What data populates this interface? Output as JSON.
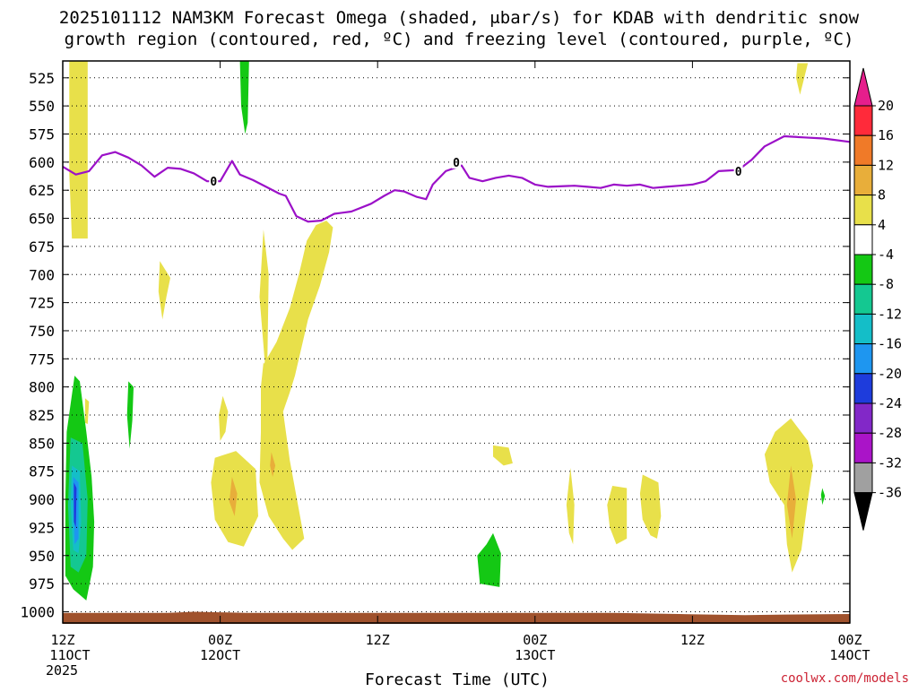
{
  "chart_data": {
    "type": "heatmap",
    "title": "2025101112 NAM3KM Forecast Omega (shaded, μbar/s) for KDAB with dendritic snow",
    "subtitle": "growth region (contoured, red, ºC) and freezing level (contoured, purple, ºC)",
    "xlabel": "Forecast Time (UTC)",
    "ylabel": "",
    "credit": "coolwx.com/models",
    "x_axis": {
      "range_hours": [
        0,
        60
      ],
      "ticks": [
        {
          "hour": 0,
          "line1": "12Z",
          "line2": "11OCT",
          "line3": "2025"
        },
        {
          "hour": 12,
          "line1": "00Z",
          "line2": "12OCT",
          "line3": ""
        },
        {
          "hour": 24,
          "line1": "12Z",
          "line2": "",
          "line3": ""
        },
        {
          "hour": 36,
          "line1": "00Z",
          "line2": "13OCT",
          "line3": ""
        },
        {
          "hour": 48,
          "line1": "12Z",
          "line2": "",
          "line3": ""
        },
        {
          "hour": 60,
          "line1": "00Z",
          "line2": "14OCT",
          "line3": ""
        }
      ]
    },
    "y_axis": {
      "range_hpa": [
        1010,
        510
      ],
      "ticks": [
        525,
        550,
        575,
        600,
        625,
        650,
        675,
        700,
        725,
        750,
        775,
        800,
        825,
        850,
        875,
        900,
        925,
        950,
        975,
        1000
      ],
      "grid": "dotted"
    },
    "colorbar": {
      "ticks": [
        "20",
        "16",
        "12",
        "8",
        "4",
        "-4",
        "-8",
        "-12",
        "-16",
        "-20",
        "-24",
        "-28",
        "-32",
        "-36"
      ],
      "colors": {
        "16to20": "#ff2a3a",
        "12to16": "#f07a28",
        "8to12": "#e8ae3a",
        "4to8": "#e8e04a",
        "m4to4": "#ffffff",
        "m8tom4": "#14c814",
        "m12tom8": "#14c891",
        "m16tom12": "#14bec8",
        "m20tom16": "#1e96f0",
        "m24tom20": "#1e3cdc",
        "m28tom24": "#8228c8",
        "m32tom28": "#aa14c8",
        "m36tom32": "#a0a0a0",
        "over": "#e61e8c",
        "under": "#000000"
      }
    },
    "freezing_level": {
      "color": "#9b10c8",
      "label": "0",
      "label_points": [
        [
          11.5,
          617
        ],
        [
          30.0,
          600
        ],
        [
          51.5,
          608
        ]
      ],
      "points": [
        [
          0,
          604
        ],
        [
          1,
          611
        ],
        [
          2,
          608
        ],
        [
          3,
          594
        ],
        [
          4,
          591
        ],
        [
          5,
          596
        ],
        [
          6,
          603
        ],
        [
          7,
          613
        ],
        [
          8,
          605
        ],
        [
          9,
          606
        ],
        [
          10,
          610
        ],
        [
          11,
          617
        ],
        [
          12,
          617
        ],
        [
          12.9,
          599
        ],
        [
          13.5,
          611
        ],
        [
          14.5,
          616
        ],
        [
          15.5,
          622
        ],
        [
          16.5,
          628
        ],
        [
          17,
          630
        ],
        [
          17.8,
          648
        ],
        [
          18.7,
          653
        ],
        [
          19.7,
          652
        ],
        [
          20.7,
          646
        ],
        [
          22,
          644
        ],
        [
          23.5,
          637
        ],
        [
          24.5,
          630
        ],
        [
          25.3,
          625
        ],
        [
          26,
          626
        ],
        [
          27,
          631
        ],
        [
          27.7,
          633
        ],
        [
          28.2,
          620
        ],
        [
          29.2,
          608
        ],
        [
          30.4,
          603
        ],
        [
          31,
          614
        ],
        [
          32,
          617
        ],
        [
          33,
          614
        ],
        [
          34,
          612
        ],
        [
          35,
          614
        ],
        [
          36,
          620
        ],
        [
          37,
          622
        ],
        [
          39,
          621
        ],
        [
          40,
          622
        ],
        [
          41,
          623
        ],
        [
          42,
          620
        ],
        [
          43,
          621
        ],
        [
          44,
          620
        ],
        [
          45,
          623
        ],
        [
          46,
          622
        ],
        [
          47,
          621
        ],
        [
          48,
          620
        ],
        [
          49,
          617
        ],
        [
          50,
          608
        ],
        [
          51.5,
          607
        ],
        [
          52.5,
          598
        ],
        [
          53.5,
          586
        ],
        [
          55,
          577
        ],
        [
          56.5,
          578
        ],
        [
          58,
          579
        ],
        [
          60,
          582
        ]
      ]
    },
    "terrain": {
      "color": "#a0522d",
      "points": [
        [
          0,
          1001
        ],
        [
          8,
          1001
        ],
        [
          10,
          1000
        ],
        [
          12,
          1000.5
        ],
        [
          14,
          1001
        ],
        [
          24,
          1001
        ],
        [
          27,
          1001
        ],
        [
          36,
          1001
        ],
        [
          42,
          1001
        ],
        [
          47,
          1002
        ],
        [
          52,
          1003
        ],
        [
          55,
          1002.5
        ],
        [
          60,
          1002
        ]
      ]
    },
    "omega_features": [
      {
        "type": "band",
        "color": "#e8e04a",
        "points": [
          [
            0.5,
            510
          ],
          [
            1.9,
            510
          ],
          [
            1.9,
            668
          ],
          [
            0.7,
            668
          ],
          [
            0.5,
            610
          ]
        ]
      },
      {
        "type": "band",
        "color": "#e8e04a",
        "points": [
          [
            7.4,
            688
          ],
          [
            8.2,
            703
          ],
          [
            7.9,
            720
          ],
          [
            7.6,
            740
          ],
          [
            7.3,
            715
          ]
        ]
      },
      {
        "type": "band",
        "color": "#14c814",
        "points": [
          [
            13.5,
            510
          ],
          [
            14.2,
            510
          ],
          [
            14.1,
            565
          ],
          [
            13.9,
            575
          ],
          [
            13.6,
            550
          ]
        ]
      },
      {
        "type": "band",
        "color": "#e8e04a",
        "points": [
          [
            15.3,
            660
          ],
          [
            15.7,
            700
          ],
          [
            15.6,
            775
          ],
          [
            15.4,
            778
          ],
          [
            15.0,
            720
          ]
        ]
      },
      {
        "type": "band",
        "color": "#e8e04a",
        "points": [
          [
            20.1,
            652
          ],
          [
            20.6,
            658
          ],
          [
            20.3,
            680
          ],
          [
            19.6,
            710
          ],
          [
            18.7,
            740
          ],
          [
            17.7,
            790
          ],
          [
            17.3,
            805
          ],
          [
            16.8,
            822
          ],
          [
            16.0,
            810
          ],
          [
            15.3,
            780
          ],
          [
            16.3,
            760
          ],
          [
            17.3,
            730
          ],
          [
            18.0,
            700
          ],
          [
            18.6,
            670
          ],
          [
            19.3,
            656
          ]
        ]
      },
      {
        "type": "band",
        "color": "#e8e04a",
        "points": [
          [
            15.3,
            778
          ],
          [
            16.0,
            808
          ],
          [
            16.8,
            822
          ],
          [
            17.3,
            865
          ],
          [
            18.4,
            935
          ],
          [
            17.5,
            945
          ],
          [
            16.8,
            935
          ],
          [
            15.7,
            915
          ],
          [
            15.0,
            885
          ],
          [
            15.1,
            840
          ],
          [
            15.1,
            800
          ]
        ]
      },
      {
        "type": "band",
        "color": "#e8ae3a",
        "points": [
          [
            15.9,
            858
          ],
          [
            16.2,
            870
          ],
          [
            16.0,
            880
          ],
          [
            15.8,
            870
          ]
        ]
      },
      {
        "type": "band",
        "color": "#e8e04a",
        "points": [
          [
            11.6,
            863
          ],
          [
            13.2,
            857
          ],
          [
            14.7,
            873
          ],
          [
            14.9,
            915
          ],
          [
            13.8,
            942
          ],
          [
            12.6,
            938
          ],
          [
            11.6,
            918
          ],
          [
            11.3,
            885
          ]
        ]
      },
      {
        "type": "band",
        "color": "#e8ae3a",
        "points": [
          [
            12.9,
            880
          ],
          [
            13.3,
            895
          ],
          [
            13.1,
            915
          ],
          [
            12.7,
            902
          ]
        ]
      },
      {
        "type": "band",
        "color": "#e8e04a",
        "points": [
          [
            12.2,
            808
          ],
          [
            12.6,
            822
          ],
          [
            12.4,
            840
          ],
          [
            12.0,
            848
          ],
          [
            11.9,
            825
          ]
        ]
      },
      {
        "type": "band",
        "color": "#14c814",
        "points": [
          [
            5.0,
            795
          ],
          [
            5.4,
            800
          ],
          [
            5.3,
            830
          ],
          [
            5.1,
            855
          ],
          [
            4.9,
            825
          ]
        ]
      },
      {
        "type": "band",
        "color": "#e8e04a",
        "points": [
          [
            1.7,
            810
          ],
          [
            2.0,
            813
          ],
          [
            1.9,
            833
          ],
          [
            1.7,
            832
          ]
        ]
      },
      {
        "type": "band",
        "color": "#14c814",
        "points": [
          [
            0.9,
            790
          ],
          [
            1.3,
            795
          ],
          [
            1.8,
            840
          ],
          [
            2.2,
            880
          ],
          [
            2.4,
            920
          ],
          [
            2.3,
            960
          ],
          [
            1.8,
            990
          ],
          [
            0.8,
            980
          ],
          [
            0.2,
            968
          ],
          [
            0.2,
            900
          ],
          [
            0.3,
            840
          ]
        ]
      },
      {
        "type": "band",
        "color": "#14c891",
        "points": [
          [
            0.6,
            845
          ],
          [
            1.5,
            850
          ],
          [
            1.9,
            900
          ],
          [
            1.8,
            950
          ],
          [
            1.2,
            965
          ],
          [
            0.6,
            960
          ],
          [
            0.4,
            905
          ]
        ]
      },
      {
        "type": "band",
        "color": "#14bec8",
        "points": [
          [
            0.7,
            870
          ],
          [
            1.3,
            875
          ],
          [
            1.4,
            920
          ],
          [
            1.2,
            948
          ],
          [
            0.8,
            945
          ],
          [
            0.6,
            905
          ]
        ]
      },
      {
        "type": "band",
        "color": "#1e96f0",
        "points": [
          [
            0.8,
            880
          ],
          [
            1.2,
            885
          ],
          [
            1.2,
            935
          ],
          [
            0.9,
            940
          ],
          [
            0.8,
            900
          ]
        ]
      },
      {
        "type": "band",
        "color": "#1e3cdc",
        "points": [
          [
            0.85,
            885
          ],
          [
            1.05,
            890
          ],
          [
            1.0,
            925
          ],
          [
            0.85,
            920
          ]
        ]
      },
      {
        "type": "band",
        "color": "#e8e04a",
        "points": [
          [
            32.8,
            852
          ],
          [
            34.0,
            854
          ],
          [
            34.3,
            868
          ],
          [
            33.6,
            870
          ],
          [
            32.8,
            862
          ]
        ]
      },
      {
        "type": "band",
        "color": "#14c814",
        "points": [
          [
            32.8,
            930
          ],
          [
            33.4,
            948
          ],
          [
            33.3,
            978
          ],
          [
            31.8,
            975
          ],
          [
            31.6,
            950
          ],
          [
            32.3,
            940
          ]
        ]
      },
      {
        "type": "band",
        "color": "#e8e04a",
        "points": [
          [
            38.7,
            872
          ],
          [
            39.0,
            905
          ],
          [
            38.9,
            940
          ],
          [
            38.6,
            930
          ],
          [
            38.4,
            905
          ]
        ]
      },
      {
        "type": "band",
        "color": "#e8e04a",
        "points": [
          [
            41.9,
            888
          ],
          [
            43.0,
            890
          ],
          [
            43.0,
            935
          ],
          [
            42.2,
            940
          ],
          [
            41.7,
            925
          ],
          [
            41.5,
            905
          ]
        ]
      },
      {
        "type": "band",
        "color": "#e8e04a",
        "points": [
          [
            44.2,
            878
          ],
          [
            45.4,
            885
          ],
          [
            45.6,
            915
          ],
          [
            45.3,
            935
          ],
          [
            44.8,
            932
          ],
          [
            44.2,
            918
          ],
          [
            44.0,
            895
          ]
        ]
      },
      {
        "type": "band",
        "color": "#e8e04a",
        "points": [
          [
            56.0,
            512
          ],
          [
            56.8,
            512
          ],
          [
            56.2,
            540
          ],
          [
            55.9,
            525
          ]
        ]
      },
      {
        "type": "band",
        "color": "#e8e04a",
        "points": [
          [
            55.5,
            828
          ],
          [
            56.8,
            848
          ],
          [
            57.2,
            870
          ],
          [
            56.8,
            900
          ],
          [
            56.3,
            945
          ],
          [
            55.6,
            965
          ],
          [
            55.2,
            940
          ],
          [
            55.0,
            905
          ],
          [
            53.9,
            885
          ],
          [
            53.5,
            860
          ],
          [
            54.3,
            840
          ]
        ]
      },
      {
        "type": "band",
        "color": "#e8ae3a",
        "points": [
          [
            55.5,
            870
          ],
          [
            55.9,
            900
          ],
          [
            55.6,
            935
          ],
          [
            55.2,
            905
          ]
        ]
      },
      {
        "type": "band",
        "color": "#14c814",
        "points": [
          [
            57.9,
            890
          ],
          [
            58.1,
            897
          ],
          [
            57.9,
            905
          ],
          [
            57.8,
            896
          ]
        ]
      }
    ]
  }
}
